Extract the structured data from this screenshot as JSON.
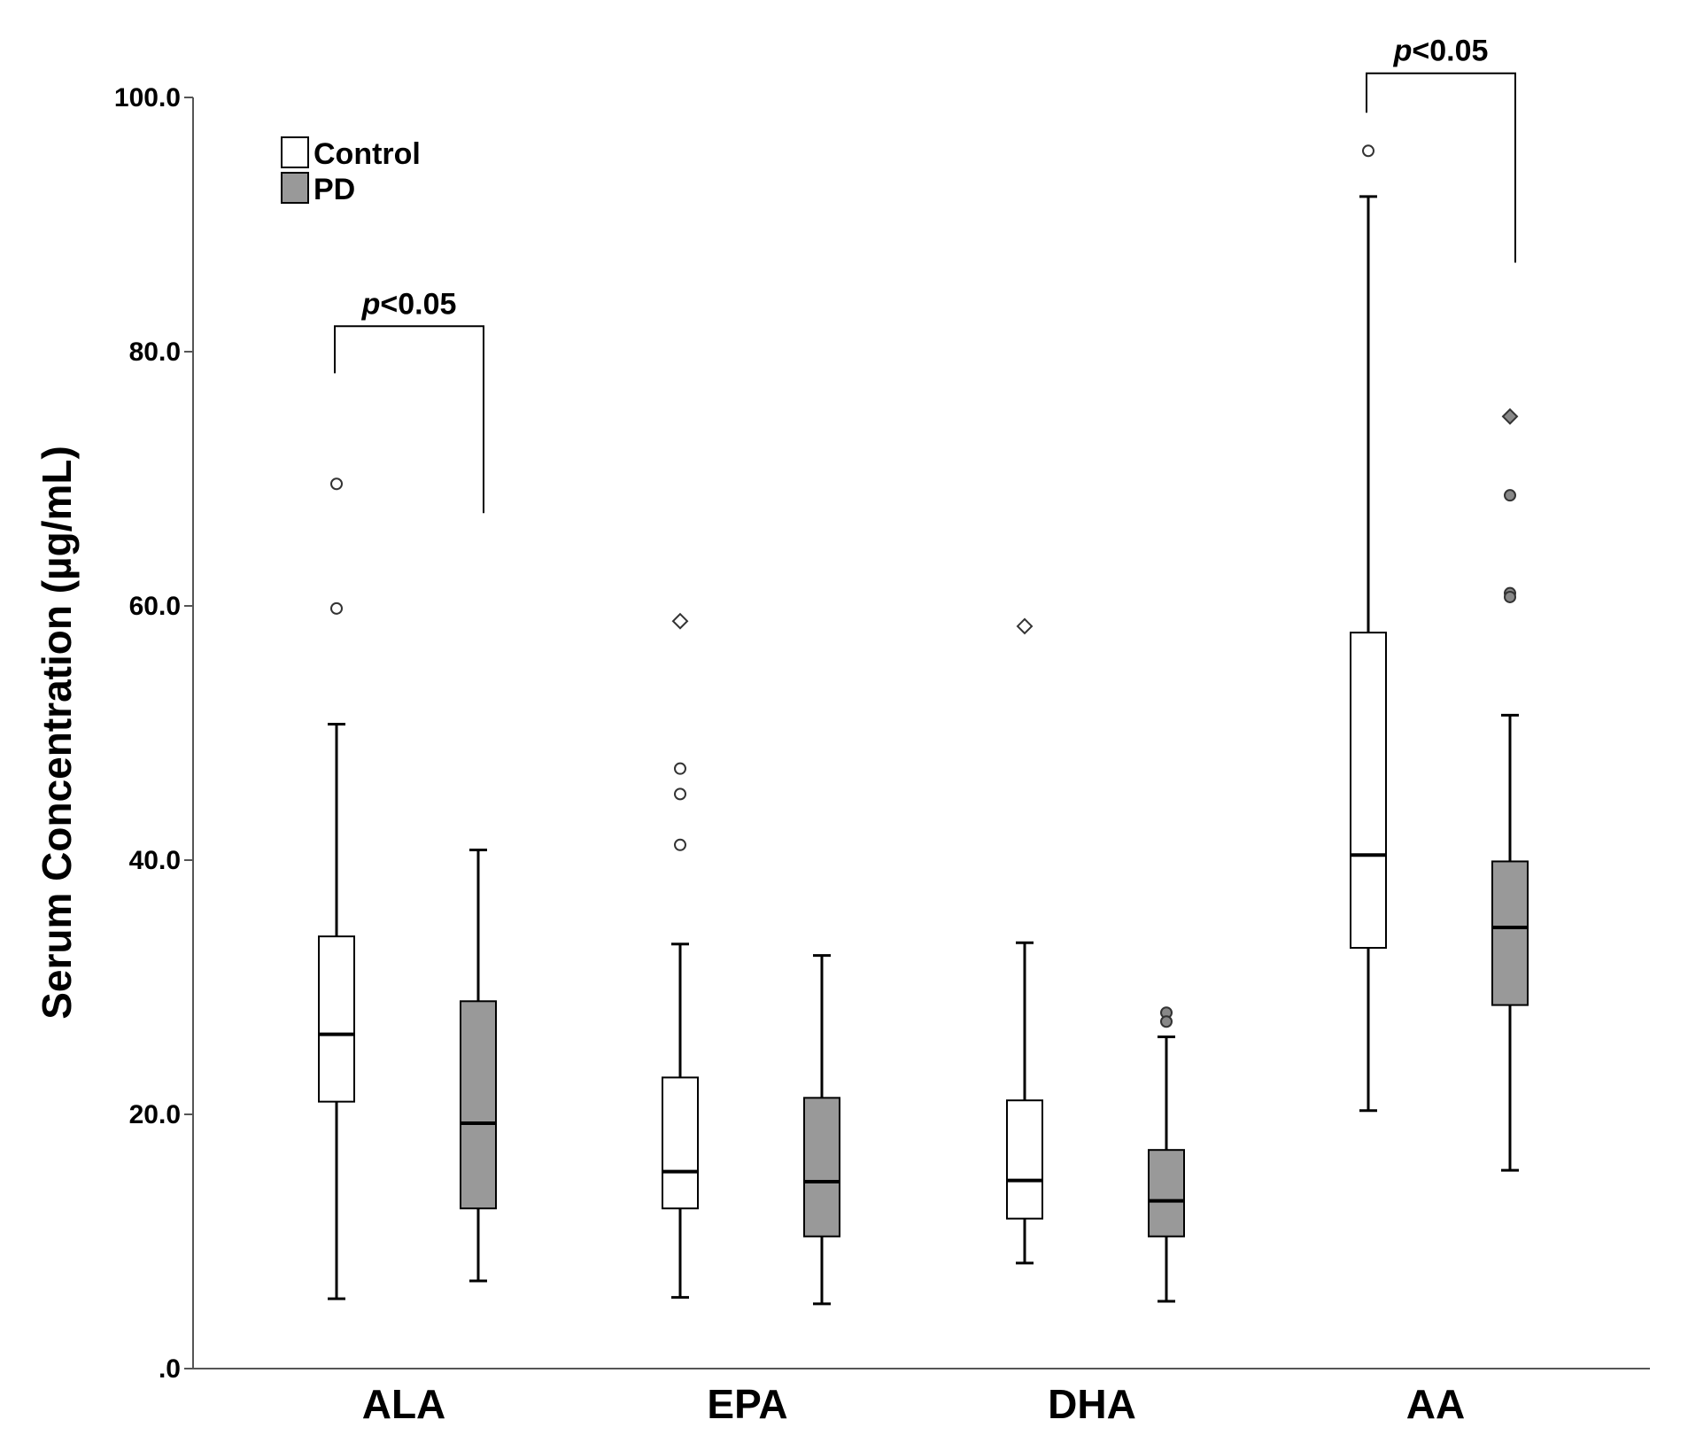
{
  "chart_data": {
    "type": "boxplot",
    "title": "",
    "xlabel": "",
    "ylabel": "Serum Concentration (µg/mL)",
    "ylim": [
      0,
      100
    ],
    "yticks": [
      ".0",
      "20.0",
      "40.0",
      "60.0",
      "80.0",
      "100.0"
    ],
    "categories": [
      "ALA",
      "EPA",
      "DHA",
      "AA"
    ],
    "legend": {
      "placement": "top-left",
      "entries": [
        {
          "name": "Control",
          "color": "#ffffff"
        },
        {
          "name": "PD",
          "color": "#999999"
        }
      ]
    },
    "grid": false,
    "series": [
      {
        "name": "Control",
        "color": "#ffffff",
        "boxes": [
          {
            "category": "ALA",
            "min": 5.5,
            "q1": 21.0,
            "median": 26.3,
            "q3": 34.0,
            "max": 50.7,
            "outliers": [
              {
                "value": 69.6,
                "marker": "circle"
              },
              {
                "value": 59.8,
                "marker": "circle"
              }
            ]
          },
          {
            "category": "EPA",
            "min": 5.6,
            "q1": 12.6,
            "median": 15.5,
            "q3": 22.9,
            "max": 33.4,
            "outliers": [
              {
                "value": 58.8,
                "marker": "diamond"
              },
              {
                "value": 47.2,
                "marker": "circle"
              },
              {
                "value": 45.2,
                "marker": "circle"
              },
              {
                "value": 41.2,
                "marker": "circle"
              }
            ]
          },
          {
            "category": "DHA",
            "min": 8.3,
            "q1": 11.8,
            "median": 14.8,
            "q3": 21.1,
            "max": 33.5,
            "outliers": [
              {
                "value": 58.4,
                "marker": "diamond"
              }
            ]
          },
          {
            "category": "AA",
            "min": 20.3,
            "q1": 33.1,
            "median": 40.4,
            "q3": 57.9,
            "max": 92.2,
            "outliers": [
              {
                "value": 95.8,
                "marker": "circle"
              }
            ]
          }
        ]
      },
      {
        "name": "PD",
        "color": "#999999",
        "boxes": [
          {
            "category": "ALA",
            "min": 6.9,
            "q1": 12.6,
            "median": 19.3,
            "q3": 28.9,
            "max": 40.8,
            "outliers": []
          },
          {
            "category": "EPA",
            "min": 5.1,
            "q1": 10.4,
            "median": 14.7,
            "q3": 21.3,
            "max": 32.5,
            "outliers": []
          },
          {
            "category": "DHA",
            "min": 5.3,
            "q1": 10.4,
            "median": 13.2,
            "q3": 17.2,
            "max": 26.1,
            "outliers": [
              {
                "value": 28.0,
                "marker": "circle"
              },
              {
                "value": 27.3,
                "marker": "circle"
              }
            ]
          },
          {
            "category": "AA",
            "min": 15.6,
            "q1": 28.6,
            "median": 34.7,
            "q3": 39.9,
            "max": 51.4,
            "outliers": [
              {
                "value": 74.9,
                "marker": "diamond"
              },
              {
                "value": 68.7,
                "marker": "circle"
              },
              {
                "value": 61.0,
                "marker": "circle"
              },
              {
                "value": 60.7,
                "marker": "circle"
              }
            ]
          }
        ]
      }
    ],
    "annotations": [
      {
        "category": "ALA",
        "text_italic": "p",
        "text_rest": "<0.05",
        "bracket_top": 82.0,
        "left_drop": 78.3,
        "right_drop": 67.3
      },
      {
        "category": "AA",
        "text_italic": "p",
        "text_rest": "<0.05",
        "bracket_top": 101.9,
        "left_drop": 98.8,
        "right_drop": 87.0
      }
    ]
  }
}
